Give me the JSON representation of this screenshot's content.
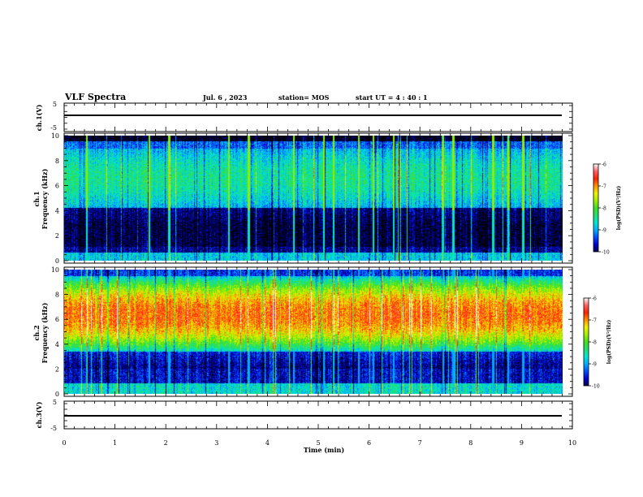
{
  "header": {
    "title": "VLF Spectra",
    "date": "Jul. 6 , 2023",
    "station": "station= MOS",
    "start_ut": "start UT = 4 : 40 : 1"
  },
  "chart_data": [
    {
      "type": "line",
      "panel": "ch1-waveform",
      "ylabel": "ch.1(V)",
      "ylim": [
        -5,
        5
      ],
      "yticks": [
        "5",
        "-5"
      ],
      "series": [
        {
          "x": [
            0,
            9.85
          ],
          "y": [
            0,
            0
          ]
        }
      ]
    },
    {
      "type": "heatmap",
      "panel": "ch1-spectrogram",
      "ylabel": "ch.1\nFrequency (kHz)",
      "ylim": [
        0,
        10
      ],
      "yticks": [
        "0",
        "2",
        "4",
        "6",
        "8",
        "10"
      ],
      "xlim": [
        0,
        9.85
      ],
      "colorbar": {
        "label": "log(PSD)(V²/Hz)",
        "range": [
          -10,
          -6
        ],
        "ticks": [
          "-6",
          "-7",
          "-8",
          "-9",
          "-10"
        ]
      }
    },
    {
      "type": "heatmap",
      "panel": "ch2-spectrogram",
      "ylabel": "ch.2\nFrequency (kHz)",
      "ylim": [
        0,
        10
      ],
      "yticks": [
        "0",
        "2",
        "4",
        "6",
        "8",
        "10"
      ],
      "xlim": [
        0,
        9.85
      ],
      "colorbar": {
        "label": "log(PSD)(V²/Hz)",
        "range": [
          -10,
          -6
        ],
        "ticks": [
          "-6",
          "-7",
          "-8",
          "-9",
          "-10"
        ]
      }
    },
    {
      "type": "line",
      "panel": "ch3-waveform",
      "ylabel": "ch.3(V)",
      "ylim": [
        -5,
        5
      ],
      "yticks": [
        "5",
        "-5"
      ],
      "series": [
        {
          "x": [
            0,
            9.85
          ],
          "y": [
            0,
            0
          ]
        }
      ]
    }
  ],
  "x_axis": {
    "label": "Time (min)",
    "range": [
      0,
      10
    ],
    "ticks": [
      "0",
      "1",
      "2",
      "3",
      "4",
      "5",
      "6",
      "7",
      "8",
      "9",
      "10"
    ]
  },
  "colormap": [
    "#000000",
    "#000055",
    "#0000d0",
    "#0050ff",
    "#00b0ff",
    "#00e8d0",
    "#20e070",
    "#40e020",
    "#a0f000",
    "#f0f000",
    "#ff9000",
    "#ff2000",
    "#ff6060",
    "#ffffff"
  ]
}
